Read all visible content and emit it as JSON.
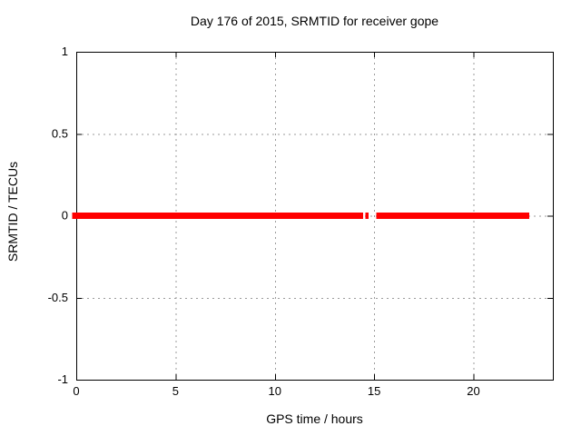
{
  "window": {
    "background": "#ffffff",
    "text_color": "#000000"
  },
  "chart_data": {
    "type": "line",
    "title": "Day 176 of 2015, SRMTID for receiver gope",
    "xlabel": "GPS time / hours",
    "ylabel": "SRMTID / TECUs",
    "xlim": [
      0,
      24
    ],
    "ylim": [
      -1,
      1
    ],
    "xticks": [
      {
        "value": 0,
        "label": "0"
      },
      {
        "value": 5,
        "label": "5"
      },
      {
        "value": 10,
        "label": "10"
      },
      {
        "value": 15,
        "label": "15"
      },
      {
        "value": 20,
        "label": "20"
      }
    ],
    "yticks": [
      {
        "value": -1,
        "label": "-1"
      },
      {
        "value": -0.5,
        "label": "-0.5"
      },
      {
        "value": 0,
        "label": "0"
      },
      {
        "value": 0.5,
        "label": "0.5"
      },
      {
        "value": 1,
        "label": "1"
      }
    ],
    "grid": true,
    "grid_style": "dotted",
    "grid_color": "#9b9b9b",
    "axis_color": "#000000",
    "legend_position": "none",
    "series": [
      {
        "name": "SRMTID",
        "color": "#ff0000",
        "line_width": 7,
        "y_value": 0,
        "segments_x_hours": [
          [
            -0.2,
            14.45
          ],
          [
            14.55,
            14.72
          ],
          [
            15.1,
            22.8
          ]
        ]
      }
    ]
  }
}
